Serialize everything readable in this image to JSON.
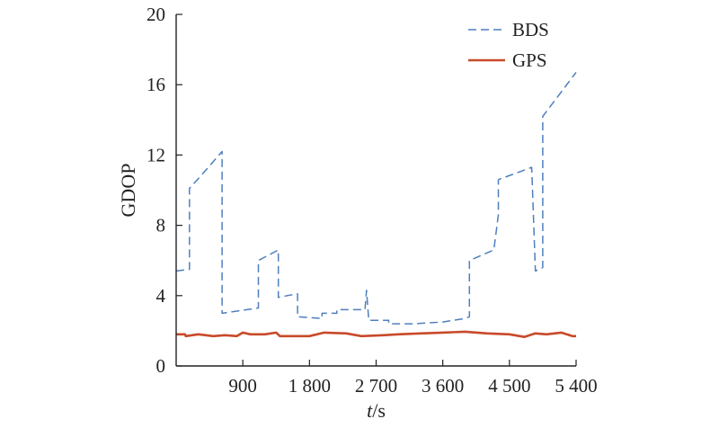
{
  "chart_data": {
    "type": "line",
    "title": "",
    "xlabel_italic": "t",
    "xlabel_unit": "/s",
    "ylabel": "GDOP",
    "xlim": [
      0,
      5400
    ],
    "ylim": [
      0,
      20
    ],
    "x_ticks": [
      900,
      1800,
      2700,
      3600,
      4500,
      5400
    ],
    "x_tick_labels": [
      "900",
      "1 800",
      "2 700",
      "3 600",
      "4 500",
      "5 400"
    ],
    "y_ticks": [
      0,
      4,
      8,
      12,
      16,
      20
    ],
    "y_tick_labels": [
      "0",
      "4",
      "8",
      "12",
      "16",
      "20"
    ],
    "legend_position": "top-right",
    "series": [
      {
        "name": "BDS",
        "color": "#4f7fbf",
        "style": "dashed",
        "points": [
          [
            0,
            5.4
          ],
          [
            180,
            5.5
          ],
          [
            180,
            10.1
          ],
          [
            330,
            10.8
          ],
          [
            620,
            12.2
          ],
          [
            620,
            3.0
          ],
          [
            1110,
            3.3
          ],
          [
            1110,
            6.0
          ],
          [
            1380,
            6.6
          ],
          [
            1380,
            3.9
          ],
          [
            1500,
            4.0
          ],
          [
            1640,
            4.1
          ],
          [
            1640,
            2.8
          ],
          [
            1970,
            2.7
          ],
          [
            1970,
            3.0
          ],
          [
            2170,
            3.0
          ],
          [
            2170,
            3.2
          ],
          [
            2550,
            3.2
          ],
          [
            2570,
            4.3
          ],
          [
            2600,
            2.6
          ],
          [
            2870,
            2.6
          ],
          [
            2870,
            2.4
          ],
          [
            3200,
            2.4
          ],
          [
            3600,
            2.5
          ],
          [
            3900,
            2.7
          ],
          [
            3960,
            2.8
          ],
          [
            3960,
            6.0
          ],
          [
            4290,
            6.6
          ],
          [
            4350,
            8.6
          ],
          [
            4350,
            10.6
          ],
          [
            4800,
            11.3
          ],
          [
            4850,
            5.4
          ],
          [
            4950,
            5.6
          ],
          [
            4950,
            14.2
          ],
          [
            5400,
            16.7
          ]
        ]
      },
      {
        "name": "GPS",
        "color": "#c84a2a",
        "style": "solid",
        "points": [
          [
            0,
            1.8
          ],
          [
            120,
            1.8
          ],
          [
            130,
            1.7
          ],
          [
            300,
            1.8
          ],
          [
            500,
            1.7
          ],
          [
            660,
            1.75
          ],
          [
            820,
            1.7
          ],
          [
            900,
            1.9
          ],
          [
            1000,
            1.8
          ],
          [
            1200,
            1.8
          ],
          [
            1350,
            1.9
          ],
          [
            1400,
            1.7
          ],
          [
            1600,
            1.7
          ],
          [
            1800,
            1.7
          ],
          [
            2000,
            1.9
          ],
          [
            2300,
            1.85
          ],
          [
            2500,
            1.7
          ],
          [
            2800,
            1.75
          ],
          [
            3000,
            1.8
          ],
          [
            3300,
            1.85
          ],
          [
            3600,
            1.9
          ],
          [
            3900,
            1.95
          ],
          [
            4200,
            1.85
          ],
          [
            4500,
            1.8
          ],
          [
            4700,
            1.65
          ],
          [
            4850,
            1.85
          ],
          [
            5000,
            1.8
          ],
          [
            5200,
            1.9
          ],
          [
            5350,
            1.7
          ],
          [
            5400,
            1.7
          ]
        ]
      }
    ]
  }
}
